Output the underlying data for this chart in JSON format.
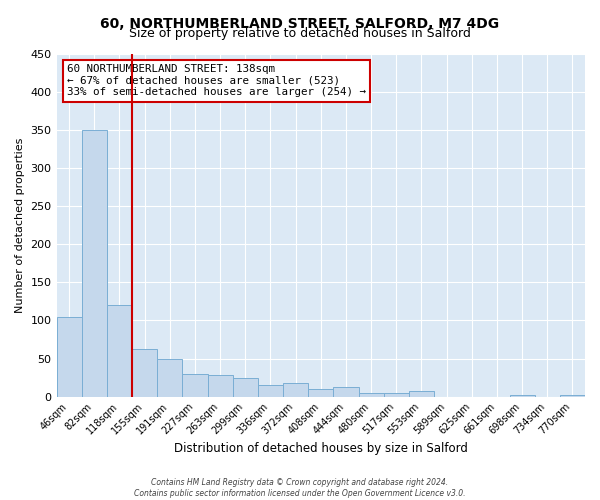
{
  "title": "60, NORTHUMBERLAND STREET, SALFORD, M7 4DG",
  "subtitle": "Size of property relative to detached houses in Salford",
  "xlabel": "Distribution of detached houses by size in Salford",
  "ylabel": "Number of detached properties",
  "bar_labels": [
    "46sqm",
    "82sqm",
    "118sqm",
    "155sqm",
    "191sqm",
    "227sqm",
    "263sqm",
    "299sqm",
    "336sqm",
    "372sqm",
    "408sqm",
    "444sqm",
    "480sqm",
    "517sqm",
    "553sqm",
    "589sqm",
    "625sqm",
    "661sqm",
    "698sqm",
    "734sqm",
    "770sqm"
  ],
  "bar_values": [
    105,
    350,
    120,
    62,
    50,
    30,
    28,
    25,
    15,
    18,
    10,
    13,
    5,
    5,
    7,
    0,
    0,
    0,
    2,
    0,
    2
  ],
  "bar_color": "#c5d8ec",
  "bar_edgecolor": "#7aaed4",
  "vline_x": 2.5,
  "vline_color": "#cc0000",
  "ylim": [
    0,
    450
  ],
  "yticks": [
    0,
    50,
    100,
    150,
    200,
    250,
    300,
    350,
    400,
    450
  ],
  "annotation_title": "60 NORTHUMBERLAND STREET: 138sqm",
  "annotation_line1": "← 67% of detached houses are smaller (523)",
  "annotation_line2": "33% of semi-detached houses are larger (254) →",
  "annotation_box_edgecolor": "#cc0000",
  "footer1": "Contains HM Land Registry data © Crown copyright and database right 2024.",
  "footer2": "Contains public sector information licensed under the Open Government Licence v3.0.",
  "fig_bg_color": "#ffffff",
  "plot_bg_color": "#dce9f5",
  "grid_color": "#ffffff",
  "title_fontsize": 10,
  "subtitle_fontsize": 9
}
